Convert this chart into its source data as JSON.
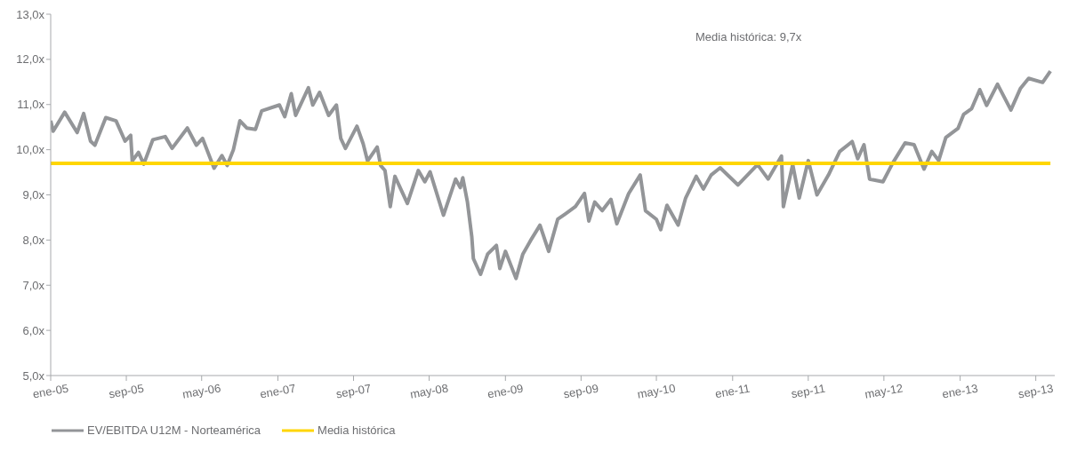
{
  "chart_data": {
    "type": "line",
    "annotations": [
      "Media histórica: 9,7x"
    ],
    "xlim": [
      "2005-01-01",
      "2013-11-01"
    ],
    "xticks": [
      {
        "value": "2005-01-01",
        "label": "ene-05"
      },
      {
        "value": "2005-09-01",
        "label": "sep-05"
      },
      {
        "value": "2006-05-01",
        "label": "may-06"
      },
      {
        "value": "2007-01-01",
        "label": "ene-07"
      },
      {
        "value": "2007-09-01",
        "label": "sep-07"
      },
      {
        "value": "2008-05-01",
        "label": "may-08"
      },
      {
        "value": "2009-01-01",
        "label": "ene-09"
      },
      {
        "value": "2009-09-01",
        "label": "sep-09"
      },
      {
        "value": "2010-05-01",
        "label": "may-10"
      },
      {
        "value": "2011-01-01",
        "label": "ene-11"
      },
      {
        "value": "2011-09-01",
        "label": "sep-11"
      },
      {
        "value": "2012-05-01",
        "label": "may-12"
      },
      {
        "value": "2013-01-01",
        "label": "ene-13"
      },
      {
        "value": "2013-09-01",
        "label": "sep-13"
      }
    ],
    "ylim": [
      5,
      13
    ],
    "yticks": [
      {
        "value": 5,
        "label": "5,0x"
      },
      {
        "value": 6,
        "label": "6,0x"
      },
      {
        "value": 7,
        "label": "7,0x"
      },
      {
        "value": 8,
        "label": "8,0x"
      },
      {
        "value": 9,
        "label": "9,0x"
      },
      {
        "value": 10,
        "label": "10,0x"
      },
      {
        "value": 11,
        "label": "11,0x"
      },
      {
        "value": 12,
        "label": "12,0x"
      },
      {
        "value": 13,
        "label": "13,0x"
      }
    ],
    "grid": false,
    "legend": "bottom",
    "marker": "none",
    "line_style": "solid",
    "series": [
      {
        "name": "EV/EBITDA U12M - Norteamérica",
        "color": "#939598",
        "x": [
          "2005-01-01",
          "2005-01-09",
          "2005-02-15",
          "2005-03-27",
          "2005-04-17",
          "2005-05-09",
          "2005-05-23",
          "2005-06-27",
          "2005-07-30",
          "2005-08-28",
          "2005-09-15",
          "2005-09-20",
          "2005-10-10",
          "2005-10-27",
          "2005-11-25",
          "2006-01-04",
          "2006-01-26",
          "2006-03-16",
          "2006-04-14",
          "2006-05-04",
          "2006-06-10",
          "2006-07-05",
          "2006-07-22",
          "2006-08-11",
          "2006-09-01",
          "2006-09-23",
          "2006-10-21",
          "2006-11-10",
          "2007-01-06",
          "2007-01-23",
          "2007-02-13",
          "2007-02-27",
          "2007-04-09",
          "2007-04-23",
          "2007-05-15",
          "2007-06-13",
          "2007-07-08",
          "2007-07-22",
          "2007-08-06",
          "2007-09-12",
          "2007-10-02",
          "2007-10-16",
          "2007-11-16",
          "2007-11-27",
          "2007-12-11",
          "2007-12-28",
          "2008-01-12",
          "2008-02-21",
          "2008-03-27",
          "2008-04-17",
          "2008-05-04",
          "2008-06-16",
          "2008-07-25",
          "2008-08-09",
          "2008-08-17",
          "2008-09-01",
          "2008-09-15",
          "2008-09-20",
          "2008-10-13",
          "2008-11-05",
          "2008-12-03",
          "2008-12-14",
          "2009-01-01",
          "2009-02-04",
          "2009-02-26",
          "2009-03-22",
          "2009-04-22",
          "2009-05-20",
          "2009-06-18",
          "2009-07-13",
          "2009-08-14",
          "2009-09-12",
          "2009-09-26",
          "2009-10-15",
          "2009-11-08",
          "2009-12-06",
          "2009-12-25",
          "2010-02-01",
          "2010-03-10",
          "2010-03-27",
          "2010-05-01",
          "2010-05-15",
          "2010-06-04",
          "2010-07-10",
          "2010-08-03",
          "2010-09-06",
          "2010-09-29",
          "2010-10-24",
          "2010-11-22",
          "2011-01-18",
          "2011-03-22",
          "2011-04-25",
          "2011-06-07",
          "2011-06-13",
          "2011-07-13",
          "2011-08-03",
          "2011-09-01",
          "2011-09-29",
          "2011-11-05",
          "2011-12-11",
          "2012-01-20",
          "2012-02-07",
          "2012-02-27",
          "2012-03-16",
          "2012-04-28",
          "2012-05-29",
          "2012-07-08",
          "2012-08-06",
          "2012-09-07",
          "2012-10-02",
          "2012-10-24",
          "2012-11-16",
          "2012-12-25",
          "2013-01-12",
          "2013-02-07",
          "2013-03-05",
          "2013-03-27",
          "2013-05-01",
          "2013-06-13",
          "2013-07-14",
          "2013-08-09",
          "2013-09-23",
          "2013-10-18"
        ],
        "values": [
          10.64,
          10.41,
          10.83,
          10.38,
          10.8,
          10.19,
          10.1,
          10.71,
          10.64,
          10.19,
          10.32,
          9.75,
          9.94,
          9.68,
          10.22,
          10.29,
          10.03,
          10.48,
          10.1,
          10.25,
          9.59,
          9.87,
          9.65,
          10.0,
          10.64,
          10.48,
          10.45,
          10.86,
          10.99,
          10.73,
          11.24,
          10.76,
          11.37,
          10.99,
          11.27,
          10.76,
          10.99,
          10.25,
          10.03,
          10.52,
          10.13,
          9.75,
          10.06,
          9.65,
          9.54,
          8.74,
          9.41,
          8.81,
          9.54,
          9.29,
          9.51,
          8.55,
          9.35,
          9.16,
          9.38,
          8.84,
          8.07,
          7.59,
          7.24,
          7.69,
          7.88,
          7.37,
          7.75,
          7.15,
          7.69,
          7.98,
          8.33,
          7.75,
          8.46,
          8.58,
          8.74,
          9.03,
          8.42,
          8.84,
          8.65,
          8.9,
          8.36,
          9.03,
          9.44,
          8.65,
          8.46,
          8.23,
          8.77,
          8.33,
          8.93,
          9.41,
          9.13,
          9.44,
          9.6,
          9.22,
          9.67,
          9.35,
          9.86,
          8.74,
          9.67,
          8.93,
          9.76,
          9.0,
          9.44,
          9.96,
          10.18,
          9.8,
          10.11,
          9.35,
          9.29,
          9.7,
          10.15,
          10.11,
          9.57,
          9.96,
          9.76,
          10.27,
          10.47,
          10.78,
          10.91,
          11.33,
          10.98,
          11.45,
          10.88,
          11.36,
          11.58,
          11.49,
          11.74
        ]
      },
      {
        "name": "Media histórica",
        "color": "#ffd600",
        "x": [
          "2005-01-01",
          "2013-10-18"
        ],
        "values": [
          9.7,
          9.7
        ]
      }
    ]
  }
}
